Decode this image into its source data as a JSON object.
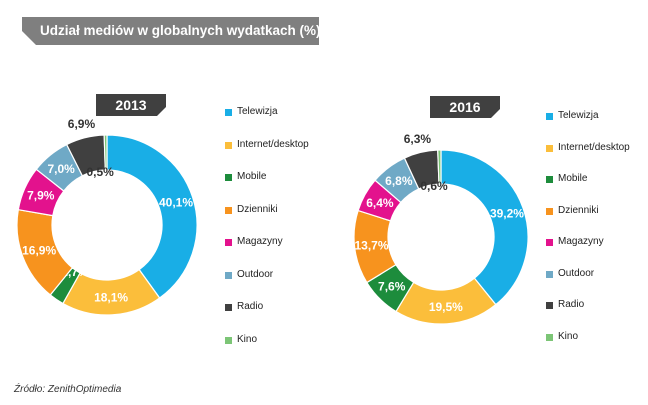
{
  "header": {
    "title": "Udział mediów w globalnych wydatkach (%)"
  },
  "source": "Źródło: ZenithOptimedia",
  "chart_data": [
    {
      "type": "donut",
      "title": "2013",
      "categories": [
        "Telewizja",
        "Internet/desktop",
        "Mobile",
        "Dzienniki",
        "Magazyny",
        "Outdoor",
        "Radio",
        "Kino"
      ],
      "values": [
        40.1,
        18.1,
        2.7,
        16.9,
        7.9,
        7.0,
        6.9,
        0.5
      ],
      "labels": [
        "40,1%",
        "18,1%",
        "2,7%",
        "16,9%",
        "7,9%",
        "7,0%",
        "6,9%",
        "0,5%"
      ],
      "colors": [
        "#19aee6",
        "#fbbe3b",
        "#1d8c3c",
        "#f7931e",
        "#e3128d",
        "#6fa9c6",
        "#404040",
        "#7cc576"
      ]
    },
    {
      "type": "donut",
      "title": "2016",
      "categories": [
        "Telewizja",
        "Internet/desktop",
        "Mobile",
        "Dzienniki",
        "Magazyny",
        "Outdoor",
        "Radio",
        "Kino"
      ],
      "values": [
        39.2,
        19.5,
        7.6,
        13.7,
        6.4,
        6.8,
        6.3,
        0.6
      ],
      "labels": [
        "39,2%",
        "19,5%",
        "7,6%",
        "13,7%",
        "6,4%",
        "6,8%",
        "6,3%",
        "0,6%"
      ],
      "colors": [
        "#19aee6",
        "#fbbe3b",
        "#1d8c3c",
        "#f7931e",
        "#e3128d",
        "#6fa9c6",
        "#404040",
        "#7cc576"
      ]
    }
  ]
}
